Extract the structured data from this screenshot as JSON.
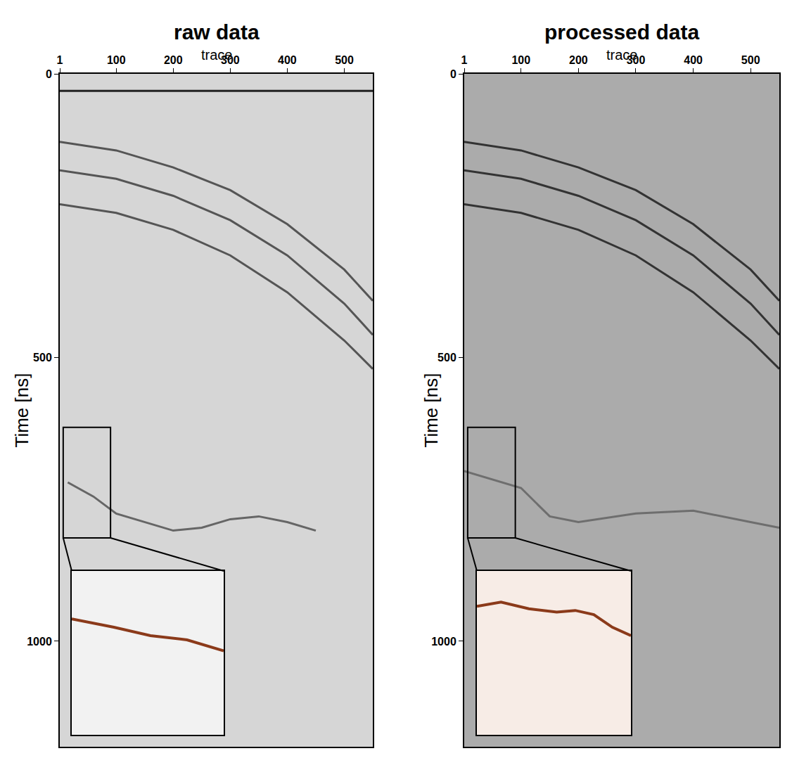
{
  "chart_data": [
    {
      "type": "line",
      "title": "raw data",
      "x_label": "trace",
      "y_label": "Time [ns]",
      "xlim": [
        1,
        550
      ],
      "xticks": [
        1,
        100,
        200,
        300,
        400,
        500
      ],
      "ylim": [
        1186,
        0
      ],
      "yticks": [
        0,
        500,
        1000
      ],
      "grid": false,
      "color": "#d6d6d6",
      "series": [
        {
          "color": "#222222",
          "x": [
            1,
            550
          ],
          "values": [
            30,
            30
          ]
        },
        {
          "color": "#555555",
          "x": [
            1,
            100,
            200,
            300,
            400,
            500,
            550
          ],
          "values": [
            120,
            135,
            165,
            205,
            265,
            345,
            400
          ]
        },
        {
          "color": "#555555",
          "x": [
            1,
            100,
            200,
            300,
            400,
            500,
            550
          ],
          "values": [
            170,
            185,
            215,
            258,
            320,
            405,
            460
          ]
        },
        {
          "color": "#555555",
          "x": [
            1,
            100,
            200,
            300,
            400,
            500,
            550
          ],
          "values": [
            230,
            245,
            275,
            320,
            385,
            470,
            520
          ]
        },
        {
          "color": "#666666",
          "x": [
            15,
            60,
            100,
            150,
            200,
            250,
            300,
            350,
            400,
            450
          ],
          "values": [
            720,
            745,
            775,
            790,
            805,
            800,
            785,
            780,
            790,
            805
          ]
        }
      ],
      "zoom": {
        "xlim": [
          7,
          90
        ],
        "ylim": [
          818,
          623
        ],
        "tick_labels": false,
        "color": "#f2f2f2",
        "series": [
          {
            "color": "#8b3a1a",
            "x": [
              7,
              30,
              50,
              70,
              90
            ],
            "values": [
              680,
              690,
              700,
              705,
              718
            ]
          }
        ]
      }
    },
    {
      "type": "line",
      "title": "processed data",
      "x_label": "trace",
      "y_label": "Time [ns]",
      "xlim": [
        1,
        550
      ],
      "xticks": [
        1,
        100,
        200,
        300,
        400,
        500
      ],
      "ylim": [
        1186,
        0
      ],
      "yticks": [
        0,
        500,
        1000
      ],
      "grid": false,
      "color": "#ababab",
      "series": [
        {
          "color": "#333333",
          "x": [
            1,
            100,
            200,
            300,
            400,
            500,
            550
          ],
          "values": [
            120,
            135,
            165,
            205,
            265,
            345,
            400
          ]
        },
        {
          "color": "#333333",
          "x": [
            1,
            100,
            200,
            300,
            400,
            500,
            550
          ],
          "values": [
            170,
            185,
            215,
            258,
            320,
            405,
            460
          ]
        },
        {
          "color": "#333333",
          "x": [
            1,
            100,
            200,
            300,
            400,
            500,
            550
          ],
          "values": [
            230,
            245,
            275,
            320,
            385,
            470,
            520
          ]
        },
        {
          "color": "#6e6e6e",
          "x": [
            1,
            100,
            150,
            200,
            300,
            400,
            500,
            550
          ],
          "values": [
            700,
            730,
            780,
            790,
            775,
            770,
            790,
            800
          ]
        }
      ],
      "zoom": {
        "xlim": [
          7,
          90
        ],
        "ylim": [
          818,
          623
        ],
        "tick_labels": false,
        "color": "#f7ece6",
        "series": [
          {
            "color": "#8b3a1a",
            "x": [
              7,
              20,
              35,
              50,
              60,
              70,
              80,
              90
            ],
            "values": [
              665,
              660,
              668,
              672,
              670,
              675,
              690,
              700
            ]
          }
        ]
      }
    }
  ]
}
